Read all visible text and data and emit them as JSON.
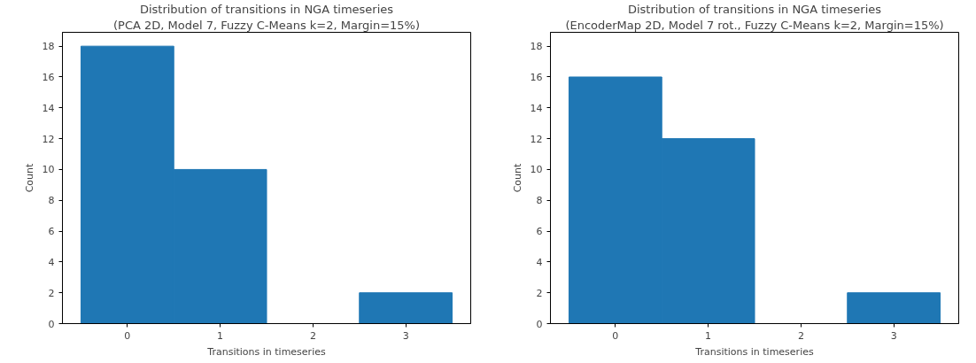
{
  "chart_data": [
    {
      "type": "histogram",
      "title": "Distribution of transitions in NGA timeseries",
      "subtitle": "(PCA 2D, Model 7, Fuzzy C-Means k=2, Margin=15%)",
      "xlabel": "Transitions in timeseries",
      "ylabel": "Count",
      "bins": [
        -0.5,
        0.5,
        1.5,
        2.5,
        3.5
      ],
      "values": [
        18,
        10,
        0,
        2
      ],
      "color": "#1f77b4",
      "xlim": [
        -0.7,
        3.7
      ],
      "ylim": [
        0,
        18.9
      ],
      "xticks": [
        0,
        1,
        2,
        3
      ],
      "yticks": [
        0,
        2,
        4,
        6,
        8,
        10,
        12,
        14,
        16,
        18
      ],
      "grid": false
    },
    {
      "type": "histogram",
      "title": "Distribution of transitions in NGA timeseries",
      "subtitle": "(EncoderMap 2D, Model 7 rot., Fuzzy C-Means k=2, Margin=15%)",
      "xlabel": "Transitions in timeseries",
      "ylabel": "Count",
      "bins": [
        -0.5,
        0.5,
        1.5,
        2.5,
        3.5
      ],
      "values": [
        16,
        12,
        0,
        2
      ],
      "color": "#1f77b4",
      "xlim": [
        -0.7,
        3.7
      ],
      "ylim": [
        0,
        18.9
      ],
      "xticks": [
        0,
        1,
        2,
        3
      ],
      "yticks": [
        0,
        2,
        4,
        6,
        8,
        10,
        12,
        14,
        16,
        18
      ],
      "grid": false
    }
  ]
}
